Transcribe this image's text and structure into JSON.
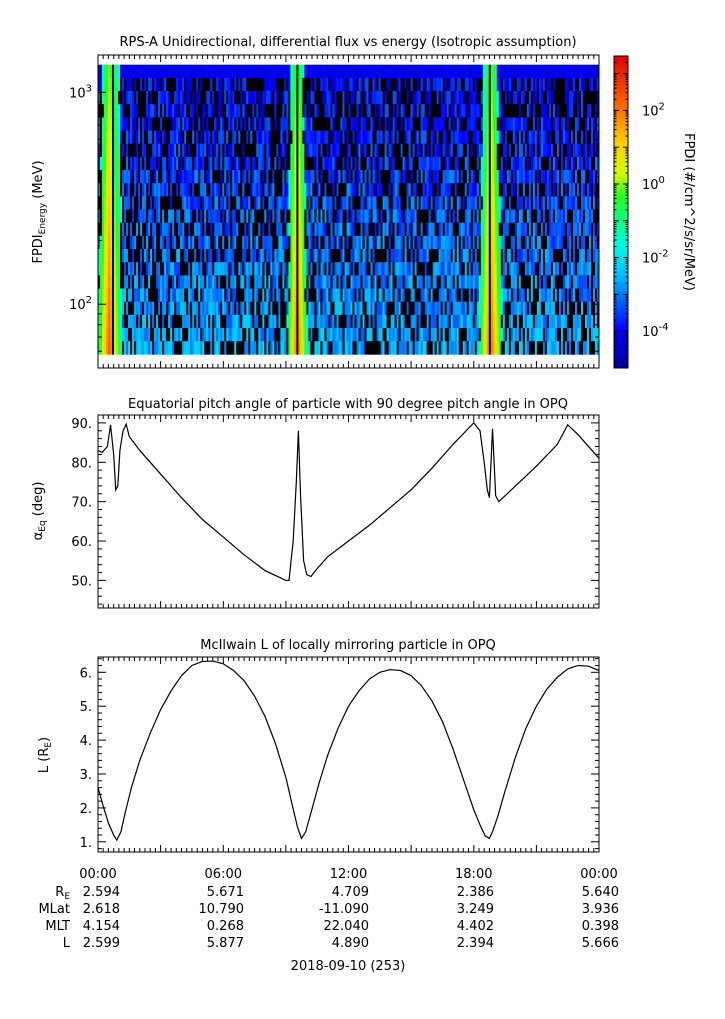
{
  "date_label": "2018-09-10 (253)",
  "colors": {
    "line": "#000000",
    "axis": "#000000"
  },
  "chart_data": [
    {
      "type": "heatmap",
      "title": "RPS-A Unidirectional, differential flux vs energy (Isotropic assumption)",
      "ylabel": "FPDI_Energy (MeV)",
      "ylabel_main": "FPDI",
      "ylabel_sub": "Energy",
      "ylabel_unit": " (MeV)",
      "y_scale": "log",
      "ylim": [
        50,
        1500
      ],
      "y_ticks": [
        {
          "value": 100,
          "base": "10",
          "exp": "2"
        },
        {
          "value": 1000,
          "base": "10",
          "exp": "3"
        }
      ],
      "xlim_hours": [
        0,
        24
      ],
      "energy_range": [
        58,
        1350
      ],
      "energy_bins": 22,
      "colorbar": {
        "label": "FPDI (#/cm^2/s/sr/MeV)",
        "scale": "log",
        "range": [
          1e-05,
          3000
        ],
        "ticks": [
          {
            "value": 100,
            "base": "10",
            "exp": "2"
          },
          {
            "value": 1,
            "base": "10",
            "exp": "0"
          },
          {
            "value": 0.01,
            "base": "10",
            "exp": "-2"
          },
          {
            "value": 0.0001,
            "base": "10",
            "exp": "-4"
          }
        ]
      }
    },
    {
      "type": "line",
      "title": "Equatorial pitch angle of particle with 90 degree pitch angle in OPQ",
      "ylabel_main": "α",
      "ylabel_sub": "Eq",
      "ylabel_unit": " (deg)",
      "ylim": [
        43,
        92
      ],
      "y_ticks": [
        "50.",
        "60.",
        "70.",
        "80.",
        "90."
      ],
      "y_tick_values": [
        50,
        60,
        70,
        80,
        90
      ],
      "xlim_hours": [
        0,
        24
      ],
      "series": [
        {
          "x": [
            0,
            0.2,
            0.45,
            0.6,
            0.75,
            0.85,
            0.95,
            1.05,
            1.2,
            1.35,
            1.5,
            2,
            3,
            4,
            5,
            6,
            7,
            8,
            9,
            9.15,
            9.35,
            9.5,
            9.6,
            9.7,
            9.85,
            10,
            10.2,
            10.5,
            11,
            12,
            13,
            14,
            15,
            16,
            17,
            18,
            18.3,
            18.5,
            18.65,
            18.75,
            18.9,
            19.05,
            19.2,
            19.4,
            20,
            21,
            22,
            22.5,
            23,
            24
          ],
          "y": [
            83,
            82.5,
            84,
            89.5,
            82,
            73,
            74,
            83,
            88,
            89.7,
            86.5,
            83,
            77,
            71,
            65.5,
            61,
            56.5,
            52.5,
            50,
            50,
            60,
            75,
            88,
            72,
            55,
            51.5,
            51,
            53,
            56,
            60,
            64,
            68.5,
            73,
            78.5,
            84.5,
            90,
            88,
            80,
            73,
            71,
            88.5,
            71.5,
            70,
            71,
            74,
            79,
            84.5,
            89.5,
            87,
            81
          ]
        }
      ]
    },
    {
      "type": "line",
      "title": "McIlwain L of locally mirroring particle in OPQ",
      "ylabel_main": "L (R",
      "ylabel_sub": "E",
      "ylabel_unit": ")",
      "ylim": [
        0.7,
        6.45
      ],
      "y_ticks": [
        "1.",
        "2.",
        "3.",
        "4.",
        "5.",
        "6."
      ],
      "y_tick_values": [
        1,
        2,
        3,
        4,
        5,
        6
      ],
      "xlim_hours": [
        0,
        24
      ],
      "series": [
        {
          "x": [
            0,
            0.25,
            0.5,
            0.75,
            0.9,
            1.1,
            1.3,
            1.6,
            2,
            2.5,
            3,
            3.5,
            4,
            4.5,
            5,
            5.5,
            6,
            6.5,
            7,
            7.5,
            8,
            8.5,
            9,
            9.3,
            9.55,
            9.75,
            9.95,
            10.2,
            10.6,
            11,
            11.5,
            12,
            12.5,
            13,
            13.5,
            14,
            14.5,
            15,
            15.5,
            16,
            16.5,
            17,
            17.5,
            18,
            18.3,
            18.55,
            18.75,
            18.9,
            19.15,
            19.5,
            20,
            20.5,
            21,
            21.5,
            22,
            22.5,
            23,
            23.5,
            24
          ],
          "y": [
            2.6,
            2.05,
            1.55,
            1.2,
            1.05,
            1.3,
            1.85,
            2.6,
            3.4,
            4.2,
            4.9,
            5.45,
            5.9,
            6.2,
            6.32,
            6.33,
            6.25,
            6.05,
            5.75,
            5.3,
            4.7,
            3.9,
            2.9,
            2.1,
            1.45,
            1.1,
            1.3,
            1.85,
            2.75,
            3.55,
            4.35,
            5.0,
            5.45,
            5.8,
            6.0,
            6.08,
            6.05,
            5.9,
            5.6,
            5.15,
            4.55,
            3.75,
            2.85,
            1.95,
            1.5,
            1.17,
            1.1,
            1.3,
            1.75,
            2.5,
            3.5,
            4.35,
            5.0,
            5.5,
            5.85,
            6.1,
            6.2,
            6.18,
            6.05
          ]
        }
      ]
    }
  ],
  "ephemeris": {
    "times": [
      "00:00",
      "06:00",
      "12:00",
      "18:00",
      "00:00"
    ],
    "rows": [
      {
        "label_main": "R",
        "label_sub": "E",
        "values": [
          "2.594",
          "5.671",
          "4.709",
          "2.386",
          "5.640"
        ]
      },
      {
        "label_main": "MLat",
        "label_sub": "",
        "values": [
          "2.618",
          "10.790",
          "-11.090",
          "3.249",
          "3.936"
        ]
      },
      {
        "label_main": "MLT",
        "label_sub": "",
        "values": [
          "4.154",
          "0.268",
          "22.040",
          "4.402",
          "0.398"
        ]
      },
      {
        "label_main": "L",
        "label_sub": "",
        "values": [
          "2.599",
          "5.877",
          "4.890",
          "2.394",
          "5.666"
        ]
      }
    ]
  }
}
